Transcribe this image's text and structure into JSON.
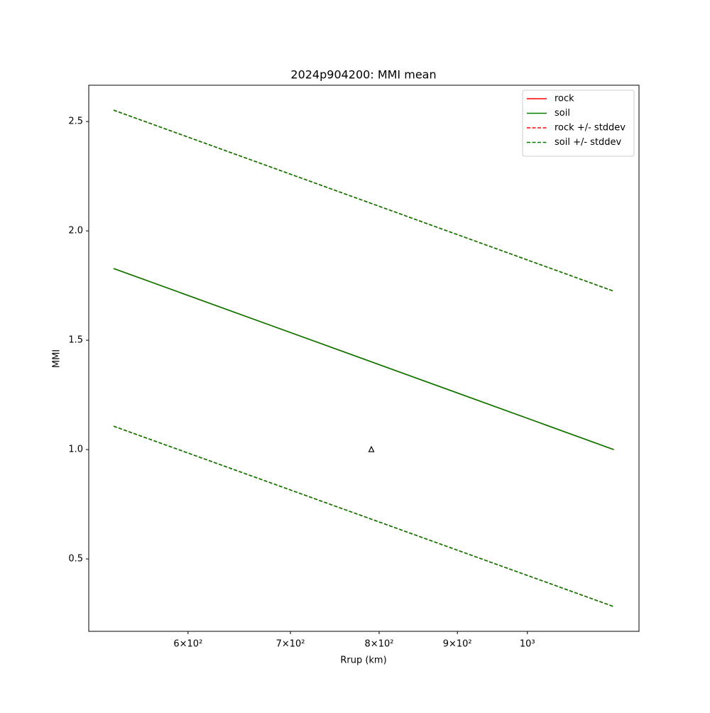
{
  "chart_data": {
    "type": "line",
    "title": "2024p904200: MMI mean",
    "xlabel": "Rrup (km)",
    "ylabel": "MMI",
    "xscale": "log",
    "legend": "upper right",
    "xlim": [
      516.7,
      1183
    ],
    "ylim": [
      0.169,
      2.666
    ],
    "xticks": [
      {
        "value": 600,
        "label": "6×10²"
      },
      {
        "value": 700,
        "label": "7×10²"
      },
      {
        "value": 800,
        "label": "8×10²"
      },
      {
        "value": 900,
        "label": "9×10²"
      },
      {
        "value": 1000,
        "label": "10³"
      }
    ],
    "yticks": [
      0.5,
      {
        "value": 1.0,
        "label": "1.0"
      },
      1.5,
      {
        "value": 2.0,
        "label": "2.0"
      },
      2.5
    ],
    "x": [
      536.4,
      1139
    ],
    "series": [
      {
        "name": "rock",
        "color": "#ff0000",
        "dash": false,
        "values": [
          1.828,
          1.0
        ]
      },
      {
        "name": "soil",
        "color": "#008000",
        "dash": false,
        "values": [
          1.828,
          1.0
        ]
      },
      {
        "name": "rock +/- stddev",
        "color": "#ff0000",
        "dash": true,
        "upper": [
          2.552,
          1.724
        ],
        "lower": [
          1.107,
          0.282
        ]
      },
      {
        "name": "soil +/- stddev",
        "color": "#008000",
        "dash": true,
        "upper": [
          2.552,
          1.724
        ],
        "lower": [
          1.107,
          0.282
        ]
      }
    ],
    "markers": {
      "x": [
        790.7
      ],
      "values": [
        1.0
      ]
    }
  }
}
